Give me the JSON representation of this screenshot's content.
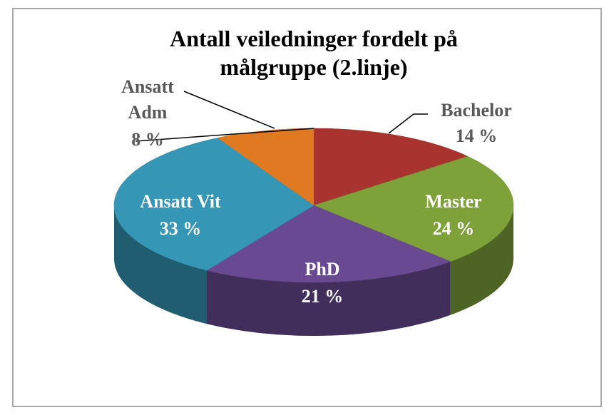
{
  "chart_data": {
    "type": "pie3d",
    "title": "Antall veiledninger fordelt på målgruppe (2.linje)",
    "categories": [
      "Bachelor",
      "Master",
      "PhD",
      "Ansatt Vit",
      "Ansatt Adm"
    ],
    "values": [
      14,
      24,
      21,
      33,
      8
    ],
    "value_labels": [
      "14 %",
      "24 %",
      "21 %",
      "33 %",
      "8 %"
    ],
    "colors": [
      "#a8332f",
      "#7ea13a",
      "#694a92",
      "#3596b5",
      "#e07a22"
    ]
  }
}
